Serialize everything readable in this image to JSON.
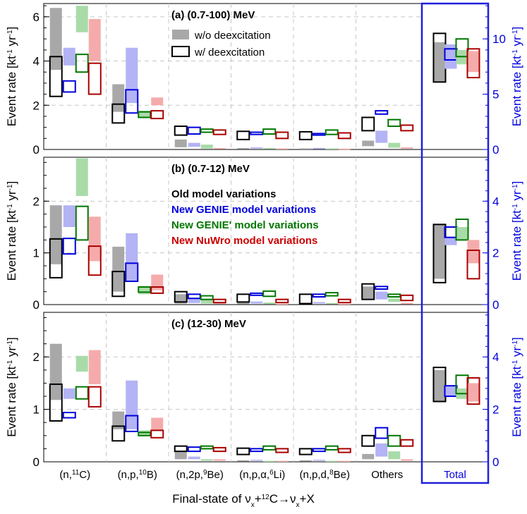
{
  "chart_data": {
    "type": "bar",
    "description_label": "Final-state of νx + 12C → νx + X",
    "xlabel": {
      "pre": "Final-state of ",
      "nu": "ν",
      "sub": "x",
      "plus": "+",
      "sup": "12",
      "elem": "C→",
      "nu2": "ν",
      "sub2": "x",
      "tail": "+X"
    },
    "categories": [
      {
        "pre": "(n,",
        "sup": "11",
        "post": "C)"
      },
      {
        "pre": "(n,p,",
        "sup": "10",
        "post": "B)"
      },
      {
        "pre": "(n,2p,",
        "sup": "9",
        "post": "Be)"
      },
      {
        "pre": "(n,p,α,",
        "sup": "6",
        "post": "Li)"
      },
      {
        "pre": "(n,p,d,",
        "sup": "8",
        "post": "Be)"
      },
      {
        "pre": "Others",
        "sup": "",
        "post": ""
      }
    ],
    "total_label": "Total",
    "ylabel_left": {
      "main": "Event rate [kt",
      "e1": "-1",
      "mid": " yr",
      "e2": "-1",
      "end": "]"
    },
    "ylabel_right": {
      "main": "Event rate [kt",
      "e1": "-1",
      "mid": " yr",
      "e2": "-1",
      "end": "]"
    },
    "legend_fill": {
      "wo": "w/o deexcitation",
      "w": "w/ deexcitation"
    },
    "legend_models": [
      {
        "label": "Old model variations",
        "color": "#000000"
      },
      {
        "label": "New GENIE model variations",
        "color": "#0000dd"
      },
      {
        "label": "New GENIE' model variations",
        "color": "#007700"
      },
      {
        "label": "New NuWro model variations",
        "color": "#cc0000"
      }
    ],
    "model_colors": {
      "old": {
        "fill": "#a8a8a8",
        "line": "#000000"
      },
      "genie": {
        "fill": "#b3b3f5",
        "line": "#0000dd"
      },
      "geniep": {
        "fill": "#a9dba9",
        "line": "#007700"
      },
      "nuwro": {
        "fill": "#f5abab",
        "line": "#aa0000"
      }
    },
    "panels": [
      {
        "title": "(a) (0.7-100) MeV",
        "ylim": [
          0,
          6.6
        ],
        "yticks": [
          0,
          2,
          4,
          6
        ],
        "rylim": [
          0,
          13.2
        ],
        "ryticks": [
          0,
          5,
          10
        ],
        "bars": [
          {
            "old": [
              [
                3.6,
                6.4
              ],
              [
                2.4,
                4.2
              ]
            ],
            "genie": [
              [
                3.8,
                4.6
              ],
              [
                2.6,
                3.1
              ]
            ],
            "geniep": [
              [
                5.3,
                6.5
              ],
              [
                3.5,
                4.3
              ]
            ],
            "nuwro": [
              [
                4.0,
                5.9
              ],
              [
                2.5,
                3.9
              ]
            ]
          },
          {
            "old": [
              [
                1.7,
                2.95
              ],
              [
                1.2,
                2.05
              ]
            ],
            "genie": [
              [
                2.1,
                4.6
              ],
              [
                1.65,
                2.7
              ]
            ],
            "geniep": [
              [
                1.45,
                1.75
              ],
              [
                1.45,
                1.7
              ]
            ],
            "nuwro": [
              [
                2.0,
                2.35
              ],
              [
                1.4,
                1.75
              ]
            ]
          },
          {
            "old": [
              [
                0.1,
                0.45
              ],
              [
                0.65,
                1.05
              ]
            ],
            "genie": [
              [
                0.12,
                0.3
              ],
              [
                0.7,
                1.0
              ]
            ],
            "geniep": [
              [
                0.04,
                0.22
              ],
              [
                0.78,
                0.92
              ]
            ],
            "nuwro": [
              [
                0.02,
                0.06
              ],
              [
                0.68,
                0.88
              ]
            ]
          },
          {
            "old": [
              [
                0.02,
                0.06
              ],
              [
                0.45,
                0.82
              ]
            ],
            "genie": [
              [
                0.04,
                0.1
              ],
              [
                0.68,
                0.78
              ]
            ],
            "geniep": [
              [
                0.03,
                0.06
              ],
              [
                0.7,
                0.92
              ]
            ],
            "nuwro": [
              [
                0.02,
                0.05
              ],
              [
                0.5,
                0.78
              ]
            ]
          },
          {
            "old": [
              [
                0.02,
                0.05
              ],
              [
                0.45,
                0.8
              ]
            ],
            "genie": [
              [
                0.03,
                0.07
              ],
              [
                0.65,
                0.72
              ]
            ],
            "geniep": [
              [
                0.02,
                0.05
              ],
              [
                0.68,
                0.88
              ]
            ],
            "nuwro": [
              [
                0.02,
                0.04
              ],
              [
                0.5,
                0.75
              ]
            ]
          },
          {
            "old": [
              [
                0.15,
                0.4
              ],
              [
                0.85,
                1.45
              ]
            ],
            "genie": [
              [
                0.3,
                0.85
              ],
              [
                1.6,
                1.75
              ]
            ],
            "geniep": [
              [
                0.08,
                0.3
              ],
              [
                1.05,
                1.35
              ]
            ],
            "nuwro": [
              [
                0.04,
                0.1
              ],
              [
                0.85,
                1.1
              ]
            ]
          }
        ],
        "total": {
          "old": [
            [
              6.1,
              9.7
            ],
            [
              6.1,
              10.5
            ]
          ],
          "genie": [
            [
              7.3,
              9.5
            ],
            [
              8.1,
              9.1
            ]
          ],
          "geniep": [
            [
              7.7,
              9.0
            ],
            [
              8.4,
              10.0
            ]
          ],
          "nuwro": [
            [
              7.0,
              8.9
            ],
            [
              6.5,
              9.1
            ]
          ]
        }
      },
      {
        "title": "(b) (0.7-12) MeV",
        "ylim": [
          0,
          2.85
        ],
        "yticks": [
          0,
          1,
          2
        ],
        "rylim": [
          0,
          5.7
        ],
        "ryticks": [
          0,
          2,
          4
        ],
        "bars": [
          {
            "old": [
              [
                0.78,
                1.92
              ],
              [
                0.52,
                1.27
              ]
            ],
            "genie": [
              [
                1.5,
                1.92
              ],
              [
                0.98,
                1.28
              ]
            ],
            "geniep": [
              [
                2.1,
                2.83
              ],
              [
                1.25,
                1.9
              ]
            ],
            "nuwro": [
              [
                0.84,
                1.7
              ],
              [
                0.57,
                1.13
              ]
            ]
          },
          {
            "old": [
              [
                0.25,
                1.12
              ],
              [
                0.16,
                0.64
              ]
            ],
            "genie": [
              [
                0.44,
                1.38
              ],
              [
                0.45,
                0.8
              ]
            ],
            "geniep": [
              [
                0.2,
                0.36
              ],
              [
                0.24,
                0.34
              ]
            ],
            "nuwro": [
              [
                0.28,
                0.58
              ],
              [
                0.22,
                0.34
              ]
            ]
          },
          {
            "old": [
              [
                0.02,
                0.2
              ],
              [
                0.05,
                0.25
              ]
            ],
            "genie": [
              [
                0.03,
                0.12
              ],
              [
                0.12,
                0.2
              ]
            ],
            "geniep": [
              [
                0.02,
                0.1
              ],
              [
                0.1,
                0.17
              ]
            ],
            "nuwro": [
              [
                0.01,
                0.03
              ],
              [
                0.04,
                0.1
              ]
            ]
          },
          {
            "old": [
              [
                0.01,
                0.04
              ],
              [
                0.05,
                0.2
              ]
            ],
            "genie": [
              [
                0.02,
                0.06
              ],
              [
                0.18,
                0.22
              ]
            ],
            "geniep": [
              [
                0.01,
                0.04
              ],
              [
                0.16,
                0.26
              ]
            ],
            "nuwro": [
              [
                0.01,
                0.02
              ],
              [
                0.04,
                0.1
              ]
            ]
          },
          {
            "old": [
              [
                0.01,
                0.03
              ],
              [
                0.02,
                0.2
              ]
            ],
            "genie": [
              [
                0.02,
                0.05
              ],
              [
                0.15,
                0.2
              ]
            ],
            "geniep": [
              [
                0.01,
                0.03
              ],
              [
                0.17,
                0.23
              ]
            ],
            "nuwro": [
              [
                0.01,
                0.02
              ],
              [
                0.04,
                0.1
              ]
            ]
          },
          {
            "old": [
              [
                0.1,
                0.35
              ],
              [
                0.1,
                0.4
              ]
            ],
            "genie": [
              [
                0.1,
                0.25
              ],
              [
                0.3,
                0.35
              ]
            ],
            "geniep": [
              [
                0.05,
                0.12
              ],
              [
                0.15,
                0.2
              ]
            ],
            "nuwro": [
              [
                0.01,
                0.03
              ],
              [
                0.08,
                0.18
              ]
            ]
          }
        ],
        "total": {
          "old": [
            [
              1.0,
              3.1
            ],
            [
              0.85,
              3.1
            ]
          ],
          "genie": [
            [
              2.3,
              2.6
            ],
            [
              2.6,
              3.0
            ]
          ],
          "geniep": [
            [
              2.5,
              3.0
            ],
            [
              2.5,
              3.3
            ]
          ],
          "nuwro": [
            [
              1.6,
              2.5
            ],
            [
              1.0,
              2.1
            ]
          ]
        }
      },
      {
        "title": "(c) (12-30) MeV",
        "ylim": [
          0,
          2.85
        ],
        "yticks": [
          0,
          1,
          2
        ],
        "rylim": [
          0,
          5.7
        ],
        "ryticks": [
          0,
          2,
          4
        ],
        "bars": [
          {
            "old": [
              [
                1.18,
                2.25
              ],
              [
                0.78,
                1.48
              ]
            ],
            "genie": [
              [
                1.2,
                1.4
              ],
              [
                0.84,
                0.94
              ]
            ],
            "geniep": [
              [
                1.72,
                2.02
              ],
              [
                1.2,
                1.43
              ]
            ],
            "nuwro": [
              [
                1.48,
                2.13
              ],
              [
                1.05,
                1.43
              ]
            ]
          },
          {
            "old": [
              [
                0.62,
                0.96
              ],
              [
                0.4,
                0.68
              ]
            ],
            "genie": [
              [
                0.62,
                1.55
              ],
              [
                0.58,
                0.88
              ]
            ],
            "geniep": [
              [
                0.5,
                0.6
              ],
              [
                0.5,
                0.56
              ]
            ],
            "nuwro": [
              [
                0.6,
                0.84
              ],
              [
                0.46,
                0.6
              ]
            ]
          },
          {
            "old": [
              [
                0.05,
                0.2
              ],
              [
                0.2,
                0.3
              ]
            ],
            "genie": [
              [
                0.05,
                0.1
              ],
              [
                0.2,
                0.28
              ]
            ],
            "geniep": [
              [
                0.02,
                0.05
              ],
              [
                0.25,
                0.3
              ]
            ],
            "nuwro": [
              [
                0.02,
                0.05
              ],
              [
                0.2,
                0.27
              ]
            ]
          },
          {
            "old": [
              [
                0.01,
                0.03
              ],
              [
                0.14,
                0.26
              ]
            ],
            "genie": [
              [
                0.02,
                0.04
              ],
              [
                0.2,
                0.25
              ]
            ],
            "geniep": [
              [
                0.01,
                0.02
              ],
              [
                0.23,
                0.3
              ]
            ],
            "nuwro": [
              [
                0.01,
                0.02
              ],
              [
                0.18,
                0.25
              ]
            ]
          },
          {
            "old": [
              [
                0.01,
                0.03
              ],
              [
                0.14,
                0.25
              ]
            ],
            "genie": [
              [
                0.02,
                0.04
              ],
              [
                0.2,
                0.25
              ]
            ],
            "geniep": [
              [
                0.01,
                0.02
              ],
              [
                0.23,
                0.3
              ]
            ],
            "nuwro": [
              [
                0.01,
                0.02
              ],
              [
                0.18,
                0.25
              ]
            ]
          },
          {
            "old": [
              [
                0.05,
                0.15
              ],
              [
                0.3,
                0.5
              ]
            ],
            "genie": [
              [
                0.1,
                0.35
              ],
              [
                0.45,
                0.65
              ]
            ],
            "geniep": [
              [
                0.05,
                0.2
              ],
              [
                0.3,
                0.5
              ]
            ],
            "nuwro": [
              [
                0.02,
                0.05
              ],
              [
                0.3,
                0.42
              ]
            ]
          }
        ],
        "total": {
          "old": [
            [
              2.3,
              3.5
            ],
            [
              2.3,
              3.6
            ]
          ],
          "genie": [
            [
              2.5,
              2.9
            ],
            [
              2.5,
              2.9
            ]
          ],
          "geniep": [
            [
              2.4,
              2.8
            ],
            [
              2.6,
              3.3
            ]
          ],
          "nuwro": [
            [
              2.3,
              3.0
            ],
            [
              2.2,
              3.2
            ]
          ]
        }
      }
    ]
  }
}
